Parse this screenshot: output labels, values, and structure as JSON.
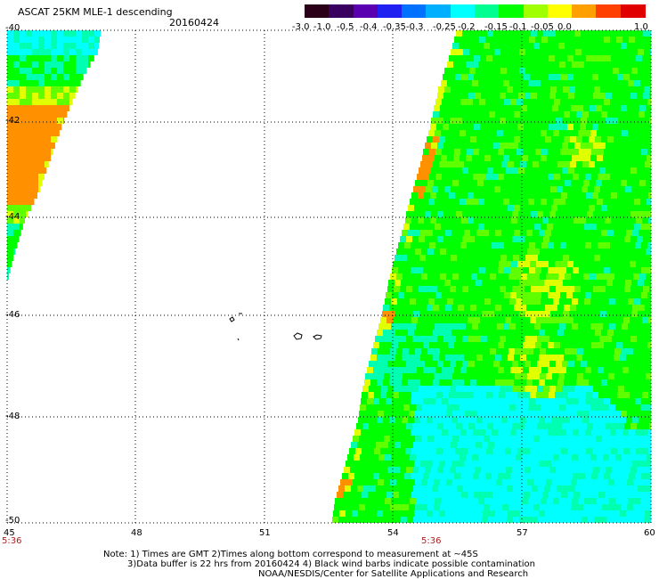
{
  "header": {
    "product": "ASCAT 25KM MLE-1 descending",
    "date": "20160424"
  },
  "colorbar": {
    "labels": [
      "-3.0",
      "-1.0",
      "-0.5",
      "-0.4",
      "-0.35",
      "-0.3",
      "-0.25",
      "-0.2",
      "-0.15",
      "-0.1",
      "-0.05",
      "0.0",
      "1.0"
    ],
    "colors": [
      "#2a0018",
      "#3a0060",
      "#5a00b0",
      "#2020f0",
      "#0070ff",
      "#00b0ff",
      "#00ffff",
      "#00ff90",
      "#00ff00",
      "#a0ff00",
      "#ffff00",
      "#ffa000",
      "#ff4000",
      "#e00000"
    ]
  },
  "map": {
    "lat_labels": [
      "-40",
      "-42",
      "-44",
      "-46",
      "-48",
      "-50"
    ],
    "lon_labels": [
      "45",
      "48",
      "51",
      "54",
      "57",
      "60"
    ],
    "time_labels": [
      "5:36",
      "5:36"
    ],
    "grid_lines": "dotted",
    "swath_colors": {
      "cyan": "#00ffff",
      "teal": "#00ffb0",
      "green": "#00ff00",
      "lime": "#60ff00",
      "yellow": "#e0ff00",
      "orange": "#ff9000"
    }
  },
  "notes": {
    "line1": "Note: 1) Times are GMT 2)Times along bottom correspond to measurement at ~45S",
    "line2": "3)Data buffer is 22 hrs from 20160424 4) Black wind barbs indicate possible contamination",
    "line3": "NOAA/NESDIS/Center for Satellite Applications and Research"
  }
}
